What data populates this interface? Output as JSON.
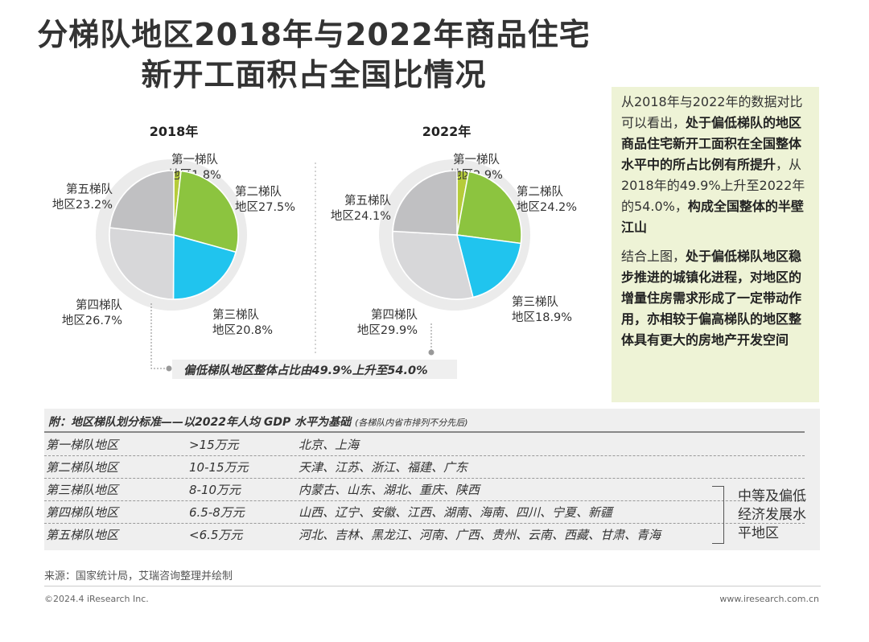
{
  "title": "分梯队地区2018年与2022年商品住宅新开工面积占全国比情况",
  "colors": {
    "tier1": "#b6cc3a",
    "tier2": "#8cc43f",
    "tier3": "#20c4ee",
    "tier4": "#d7d7d9",
    "tier5": "#c0c0c2",
    "ring": "#ebebeb"
  },
  "chart_data": {
    "type": "pie",
    "charts": [
      {
        "title": "2018年",
        "slices": [
          {
            "label": "第一梯队地区1.8%",
            "value": 1.8
          },
          {
            "label": "第二梯队地区27.5%",
            "value": 27.5
          },
          {
            "label": "第三梯队地区20.8%",
            "value": 20.8
          },
          {
            "label": "第四梯队地区26.7%",
            "value": 26.7
          },
          {
            "label": "第五梯队地区23.2%",
            "value": 23.2
          }
        ]
      },
      {
        "title": "2022年",
        "slices": [
          {
            "label": "第一梯队地区2.9%",
            "value": 2.9
          },
          {
            "label": "第二梯队地区24.2%",
            "value": 24.2
          },
          {
            "label": "第三梯队地区18.9%",
            "value": 18.9
          },
          {
            "label": "第四梯队地区29.9%",
            "value": 29.9
          },
          {
            "label": "第五梯队地区24.1%",
            "value": 24.1
          }
        ]
      }
    ],
    "annotation": "偏低梯队地区整体占比由49.9%上升至54.0%"
  },
  "side": {
    "p1_a": "从2018年与2022年的数据对比可以看出，",
    "p1_b": "处于偏低梯队的地区商品住宅新开工面积在全国整体水平中的所占比例有所提升",
    "p1_c": "，从2018年的49.9%上升至2022年的54.0%，",
    "p1_d": "构成全国整体的半壁江山",
    "p2_a": "结合上图，",
    "p2_b": "处于偏低梯队地区稳步推进的城镇化进程，对地区的增量住房需求形成了一定带动作用，亦相较于偏高梯队的地区整体具有更大的房地产开发空间"
  },
  "table": {
    "heading": "附：地区梯队划分标准——以2022年人均 GDP 水平为基础",
    "note": "(各梯队内省市排列不分先后)",
    "rows": [
      {
        "tier": "第一梯队地区",
        "range": ">15万元",
        "regions": "北京、上海"
      },
      {
        "tier": "第二梯队地区",
        "range": "10-15万元",
        "regions": "天津、江苏、浙江、福建、广东"
      },
      {
        "tier": "第三梯队地区",
        "range": "8-10万元",
        "regions": "内蒙古、山东、湖北、重庆、陕西"
      },
      {
        "tier": "第四梯队地区",
        "range": "6.5-8万元",
        "regions": "山西、辽宁、安徽、江西、湖南、海南、四川、宁夏、新疆"
      },
      {
        "tier": "第五梯队地区",
        "range": "<6.5万元",
        "regions": "河北、吉林、黑龙江、河南、广西、贵州、云南、西藏、甘肃、青海"
      }
    ],
    "group_label": "中等及偏低经济发展水平地区"
  },
  "footer": {
    "source": "来源：国家统计局，艾瑞咨询整理并绘制",
    "copyright": "©2024.4 iResearch Inc.",
    "site": "www.iresearch.com.cn"
  }
}
